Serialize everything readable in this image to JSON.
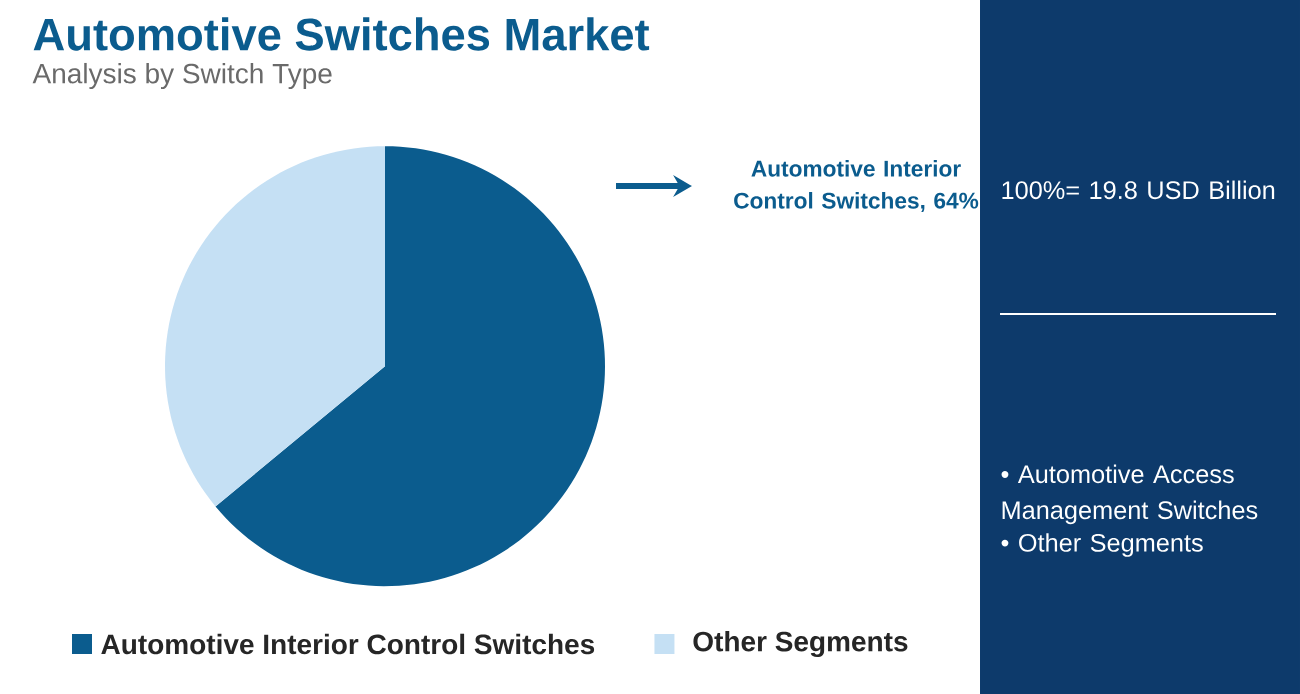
{
  "chart_data": {
    "type": "pie",
    "title": "Automotive Switches Market",
    "subtitle": "Analysis by Switch Type",
    "categories": [
      "Automotive Interior Control Switches",
      "Other Segments"
    ],
    "values": [
      64,
      36
    ],
    "colors": [
      "#0b5c8e",
      "#c5e0f4"
    ],
    "value_labels": [
      "Automotive Interior Control Switches, 64%",
      null
    ],
    "legend": "bottom",
    "annotations": [
      "100%= 19.8 USD Billion",
      "• Automotive Access Management Switches",
      "• Other Segments"
    ]
  }
}
